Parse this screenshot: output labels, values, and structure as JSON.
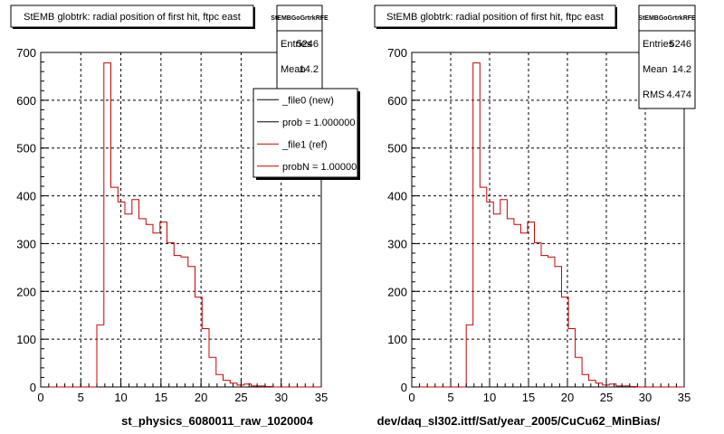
{
  "chart_data": [
    {
      "type": "histogram",
      "title": "StEMB globtrk: radial position of first hit, ftpc east",
      "xlabel": "st_physics_6080011_raw_1020004",
      "xlim": [
        0,
        35
      ],
      "ylim": [
        0,
        700
      ],
      "x_ticks": [
        "0",
        "5",
        "10",
        "15",
        "20",
        "25",
        "30",
        "35"
      ],
      "y_ticks": [
        "0",
        "100",
        "200",
        "300",
        "400",
        "500",
        "600",
        "700"
      ],
      "grid": true,
      "bin_width": 0.875,
      "bin_start": 0,
      "series": [
        {
          "color": "#cc0000",
          "values": [
            0,
            0,
            0,
            0,
            0,
            0,
            0,
            0,
            130,
            678,
            418,
            387,
            362,
            392,
            352,
            340,
            322,
            345,
            302,
            275,
            272,
            252,
            188,
            122,
            62,
            26,
            14,
            8,
            4,
            6,
            2,
            2,
            1,
            0,
            0,
            0,
            0,
            0,
            0,
            0
          ]
        }
      ],
      "stats": {
        "name": "StEMBGoGrtrkRFE",
        "entries_label": "Entries",
        "entries": "5246",
        "mean_label": "Mean",
        "mean": "14.2"
      },
      "legend": {
        "position": "top-right",
        "entries": [
          {
            "label": "_file0 (new)",
            "color": "#000000"
          },
          {
            "label": "prob = 1.000000",
            "color": "#000000"
          },
          {
            "label": "_file1 (ref)",
            "color": "#cc0000"
          },
          {
            "label": "probN = 1.000000",
            "color": "#cc0000"
          }
        ]
      }
    },
    {
      "type": "histogram",
      "title": "StEMB globtrk: radial position of first hit, ftpc east",
      "xlabel": "dev/daq_sl302.ittf/Sat/year_2005/CuCu62_MinBias/",
      "xlim": [
        0,
        35
      ],
      "ylim": [
        0,
        700
      ],
      "x_ticks": [
        "0",
        "5",
        "10",
        "15",
        "20",
        "25",
        "30",
        "35"
      ],
      "y_ticks": [
        "0",
        "100",
        "200",
        "300",
        "400",
        "500",
        "600",
        "700"
      ],
      "grid": true,
      "bin_width": 0.875,
      "bin_start": 0,
      "series": [
        {
          "color": "#cc0000",
          "values": [
            0,
            0,
            0,
            0,
            0,
            0,
            0,
            0,
            130,
            678,
            418,
            387,
            362,
            392,
            352,
            340,
            322,
            345,
            302,
            275,
            272,
            252,
            188,
            122,
            62,
            26,
            14,
            8,
            4,
            6,
            2,
            2,
            1,
            0,
            0,
            0,
            0,
            0,
            0,
            0
          ]
        }
      ],
      "stats": {
        "name": "StEMBGoGrtrkRFE",
        "entries_label": "Entries",
        "entries": "5246",
        "mean_label": "Mean",
        "mean": "14.2",
        "rms_label": "RMS",
        "rms": "4.474"
      }
    }
  ]
}
